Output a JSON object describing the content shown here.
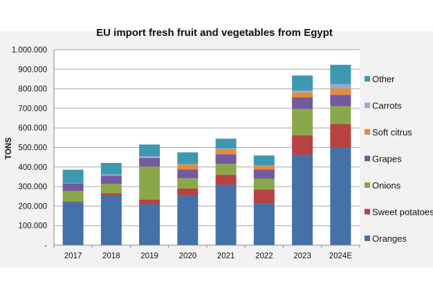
{
  "chart_data": {
    "type": "bar",
    "stacked": true,
    "title": "EU import fresh fruit and vegetables from Egypt",
    "xlabel": "",
    "ylabel": "TONS",
    "ylim": [
      0,
      1000000
    ],
    "yticks": [
      "-",
      "100.000",
      "200.000",
      "300.000",
      "400.000",
      "500.000",
      "600.000",
      "700.000",
      "800.000",
      "900.000",
      "1.000.000"
    ],
    "grid": true,
    "legend_position": "right",
    "categories": [
      "2017",
      "2018",
      "2019",
      "2020",
      "2021",
      "2022",
      "2023",
      "2024E"
    ],
    "series": [
      {
        "name": "Oranges",
        "color": "#4471a8",
        "values": [
          220000,
          256000,
          210000,
          256000,
          309000,
          215000,
          463000,
          500000
        ]
      },
      {
        "name": "Sweet potatoes",
        "color": "#b84242",
        "values": [
          5000,
          9000,
          23000,
          34000,
          51000,
          70000,
          99000,
          120000
        ]
      },
      {
        "name": "Onions",
        "color": "#8aa84a",
        "values": [
          52000,
          49000,
          169000,
          52000,
          56000,
          56000,
          136000,
          92000
        ]
      },
      {
        "name": "Grapes",
        "color": "#725a9e",
        "values": [
          39000,
          42000,
          44000,
          46000,
          49000,
          46000,
          58000,
          57000
        ]
      },
      {
        "name": "Soft citrus",
        "color": "#e58a3c",
        "values": [
          0,
          0,
          0,
          25000,
          27000,
          19000,
          26000,
          33000
        ]
      },
      {
        "name": "Carrots",
        "color": "#94aad3",
        "values": [
          2000,
          6000,
          9000,
          2000,
          3000,
          2000,
          9000,
          23000
        ]
      },
      {
        "name": "Other",
        "color": "#3c99b1",
        "values": [
          68000,
          59000,
          60000,
          60000,
          50000,
          51000,
          77000,
          98000
        ]
      }
    ]
  }
}
